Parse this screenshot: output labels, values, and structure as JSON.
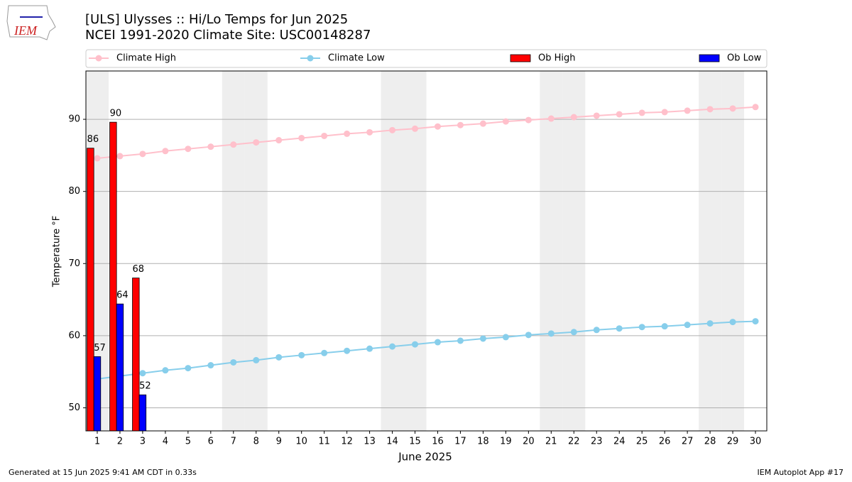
{
  "logo_text": "IEM",
  "chart_data": {
    "type": "bar",
    "title": "[ULS] Ulysses :: Hi/Lo Temps for Jun 2025",
    "subtitle": "NCEI 1991-2020 Climate Site: USC00148287",
    "xlabel": "June 2025",
    "ylabel": "Temperature °F",
    "x": [
      1,
      2,
      3,
      4,
      5,
      6,
      7,
      8,
      9,
      10,
      11,
      12,
      13,
      14,
      15,
      16,
      17,
      18,
      19,
      20,
      21,
      22,
      23,
      24,
      25,
      26,
      27,
      28,
      29,
      30
    ],
    "xlim": [
      0.5,
      30.5
    ],
    "xticks": [
      1,
      2,
      3,
      4,
      5,
      6,
      7,
      8,
      9,
      10,
      11,
      12,
      13,
      14,
      15,
      16,
      17,
      18,
      19,
      20,
      21,
      22,
      23,
      24,
      25,
      26,
      27,
      28,
      29,
      30
    ],
    "ylim": [
      46.8,
      96.7
    ],
    "yticks": [
      50,
      60,
      70,
      80,
      90
    ],
    "grid": true,
    "shaded_days": [
      1,
      7,
      8,
      14,
      15,
      21,
      22,
      28,
      29
    ],
    "shade_color": "#eeeeee",
    "legend": "top",
    "series": [
      {
        "name": "Climate High",
        "kind": "line",
        "color": "#ffc0cb",
        "values": [
          84.6,
          84.9,
          85.2,
          85.6,
          85.9,
          86.2,
          86.5,
          86.8,
          87.1,
          87.4,
          87.7,
          88.0,
          88.2,
          88.5,
          88.7,
          89.0,
          89.2,
          89.4,
          89.7,
          89.9,
          90.1,
          90.3,
          90.5,
          90.7,
          90.9,
          91.0,
          91.2,
          91.4,
          91.5,
          91.7
        ]
      },
      {
        "name": "Climate Low",
        "kind": "line",
        "color": "#87ceeb",
        "values": [
          54.0,
          54.4,
          54.8,
          55.2,
          55.5,
          55.9,
          56.3,
          56.6,
          57.0,
          57.3,
          57.6,
          57.9,
          58.2,
          58.5,
          58.8,
          59.1,
          59.3,
          59.6,
          59.8,
          60.1,
          60.3,
          60.5,
          60.8,
          61.0,
          61.2,
          61.3,
          61.5,
          61.7,
          61.9,
          62.0
        ]
      },
      {
        "name": "Ob High",
        "kind": "bar",
        "color": "#ff0000",
        "values": [
          86,
          89.6,
          68,
          null,
          null,
          null,
          null,
          null,
          null,
          null,
          null,
          null,
          null,
          null,
          null,
          null,
          null,
          null,
          null,
          null,
          null,
          null,
          null,
          null,
          null,
          null,
          null,
          null,
          null,
          null
        ],
        "value_labels": [
          "86",
          "90",
          "68",
          null,
          null,
          null,
          null,
          null,
          null,
          null,
          null,
          null,
          null,
          null,
          null,
          null,
          null,
          null,
          null,
          null,
          null,
          null,
          null,
          null,
          null,
          null,
          null,
          null,
          null,
          null
        ]
      },
      {
        "name": "Ob Low",
        "kind": "bar",
        "color": "#0000ff",
        "values": [
          57.1,
          64.4,
          51.8,
          null,
          null,
          null,
          null,
          null,
          null,
          null,
          null,
          null,
          null,
          null,
          null,
          null,
          null,
          null,
          null,
          null,
          null,
          null,
          null,
          null,
          null,
          null,
          null,
          null,
          null,
          null
        ],
        "value_labels": [
          "57",
          "64",
          "52",
          null,
          null,
          null,
          null,
          null,
          null,
          null,
          null,
          null,
          null,
          null,
          null,
          null,
          null,
          null,
          null,
          null,
          null,
          null,
          null,
          null,
          null,
          null,
          null,
          null,
          null,
          null
        ]
      }
    ],
    "footer_left": "Generated at 15 Jun 2025 9:41 AM CDT in 0.33s",
    "footer_right": "IEM Autoplot App #17"
  }
}
